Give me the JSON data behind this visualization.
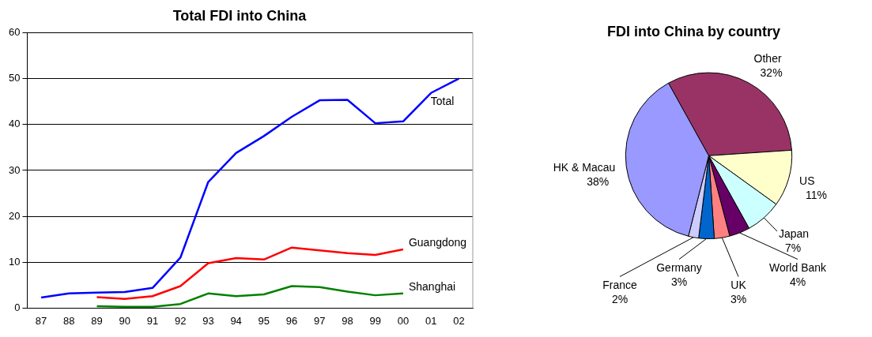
{
  "chart_data": [
    {
      "type": "line",
      "title": "Total FDI into China",
      "categories": [
        "87",
        "88",
        "89",
        "90",
        "91",
        "92",
        "93",
        "94",
        "95",
        "96",
        "97",
        "98",
        "99",
        "00",
        "01",
        "02"
      ],
      "ylim": [
        0,
        60
      ],
      "yticks": [
        0,
        10,
        20,
        30,
        40,
        50,
        60
      ],
      "grid": "y",
      "legend": false,
      "marker": "none",
      "line_style": "solid",
      "series": [
        {
          "name": "Total",
          "color": "#0000ff",
          "values": [
            2.3,
            3.2,
            3.4,
            3.5,
            4.4,
            11,
            27.5,
            33.8,
            37.5,
            41.7,
            45.3,
            45.4,
            40.3,
            40.7,
            46.9,
            50
          ]
        },
        {
          "name": "Guangdong",
          "color": "#ff0000",
          "values": [
            null,
            null,
            2.4,
            2.0,
            2.6,
            4.8,
            9.8,
            10.9,
            10.6,
            13.2,
            12.6,
            12.0,
            11.6,
            12.8,
            null,
            null
          ]
        },
        {
          "name": "Shanghai",
          "color": "#008000",
          "values": [
            null,
            null,
            0.4,
            0.3,
            0.3,
            0.9,
            3.2,
            2.6,
            3.0,
            4.8,
            4.6,
            3.6,
            2.8,
            3.2,
            null,
            null
          ]
        }
      ]
    },
    {
      "type": "pie",
      "title": "FDI into China by country",
      "categories": [
        "Other",
        "US",
        "Japan",
        "World Bank",
        "UK",
        "Germany",
        "France",
        "HK & Macau"
      ],
      "values": [
        32,
        11,
        7,
        4,
        3,
        3,
        2,
        38
      ],
      "colors": [
        "#993366",
        "#ffffcc",
        "#ccffff",
        "#660066",
        "#ff8080",
        "#0066cc",
        "#ccccff",
        "#9999ff"
      ],
      "value_labels": [
        "32%",
        "11%",
        "7%",
        "4%",
        "3%",
        "3%",
        "2%",
        "38%"
      ],
      "legend": false
    }
  ]
}
